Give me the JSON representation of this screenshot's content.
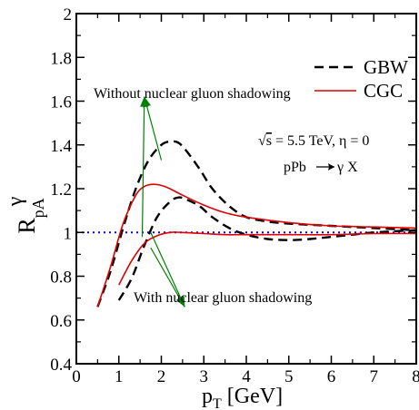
{
  "chart_data": {
    "type": "line",
    "xlabel": "p",
    "xlabel_sub": "T",
    "xlabel_unit": " [GeV]",
    "ylabel": "R",
    "ylabel_sup": "γ",
    "ylabel_sub": "pA",
    "xlim": [
      0,
      8
    ],
    "ylim": [
      0.4,
      2.0
    ],
    "xticks": [
      0,
      1,
      2,
      3,
      4,
      5,
      6,
      7,
      8
    ],
    "yticks": [
      0.4,
      0.6,
      0.8,
      1,
      1.2,
      1.4,
      1.6,
      1.8,
      2
    ],
    "ytick_labels": [
      "0.4",
      "0.6",
      "0.8",
      "1",
      "1.2",
      "1.4",
      "1.6",
      "1.8",
      "2"
    ],
    "grid": false,
    "legend": {
      "placement": "top-right",
      "entries": [
        {
          "label": "GBW",
          "color": "#000000",
          "style": "dashed"
        },
        {
          "label": "CGC",
          "color": "#e00000",
          "style": "solid"
        }
      ]
    },
    "reference_line": {
      "y": 1.0,
      "color": "#0000ee",
      "style": "dotted"
    },
    "series": [
      {
        "color": "#000000",
        "style": "dashed",
        "x": [
          0.5,
          0.8,
          1.1,
          1.4,
          1.7,
          2.0,
          2.2,
          2.4,
          2.6,
          2.9,
          3.2,
          3.6,
          4.0,
          4.5,
          5.0,
          5.5,
          6.0,
          7.0,
          8.0
        ],
        "y": [
          0.66,
          0.82,
          1.02,
          1.2,
          1.33,
          1.4,
          1.415,
          1.41,
          1.37,
          1.29,
          1.2,
          1.12,
          1.07,
          1.05,
          1.04,
          1.035,
          1.03,
          1.02,
          1.01
        ]
      },
      {
        "color": "#000000",
        "style": "dashed",
        "x": [
          1.0,
          1.3,
          1.6,
          1.9,
          2.2,
          2.4,
          2.6,
          2.9,
          3.2,
          3.6,
          4.0,
          4.5,
          5.0,
          5.5,
          6.0,
          6.5,
          7.0,
          8.0
        ],
        "y": [
          0.69,
          0.79,
          0.94,
          1.07,
          1.14,
          1.16,
          1.15,
          1.12,
          1.07,
          1.02,
          0.99,
          0.97,
          0.965,
          0.97,
          0.98,
          0.99,
          1.0,
          1.01
        ]
      },
      {
        "color": "#e00000",
        "style": "solid",
        "x": [
          0.5,
          0.8,
          1.1,
          1.4,
          1.6,
          1.8,
          2.0,
          2.2,
          2.5,
          3.0,
          3.5,
          4.0,
          5.0,
          6.0,
          7.0,
          8.0
        ],
        "y": [
          0.66,
          0.84,
          1.04,
          1.17,
          1.21,
          1.22,
          1.215,
          1.2,
          1.17,
          1.125,
          1.09,
          1.07,
          1.045,
          1.03,
          1.025,
          1.02
        ]
      },
      {
        "color": "#e00000",
        "style": "solid",
        "x": [
          1.0,
          1.3,
          1.6,
          1.9,
          2.2,
          2.5,
          3.0,
          3.5,
          4.0,
          5.0,
          6.0,
          7.0,
          8.0
        ],
        "y": [
          0.76,
          0.87,
          0.95,
          0.985,
          1.0,
          1.0,
          0.995,
          0.99,
          0.99,
          0.99,
          0.99,
          0.995,
          0.995
        ]
      }
    ],
    "annotations": {
      "top_text": "Without nuclear gluon shadowing",
      "bottom_text": "With nuclear gluon shadowing",
      "energy_text": "= 5.5 TeV, η = 0",
      "sqrt_symbol": "√",
      "sqrt_var": "s",
      "process_text_a": "pPb",
      "process_text_b": "γ X",
      "arrow_color": "#008000",
      "top_arrow_tip": [
        1.6,
        1.62
      ],
      "top_arrow_targets": [
        [
          1.55,
          0.98
        ],
        [
          2.0,
          1.33
        ]
      ],
      "bottom_arrow_tip": [
        2.55,
        0.66
      ],
      "bottom_arrow_targets": [
        [
          1.75,
          1.0
        ],
        [
          1.75,
          0.93
        ]
      ]
    }
  }
}
